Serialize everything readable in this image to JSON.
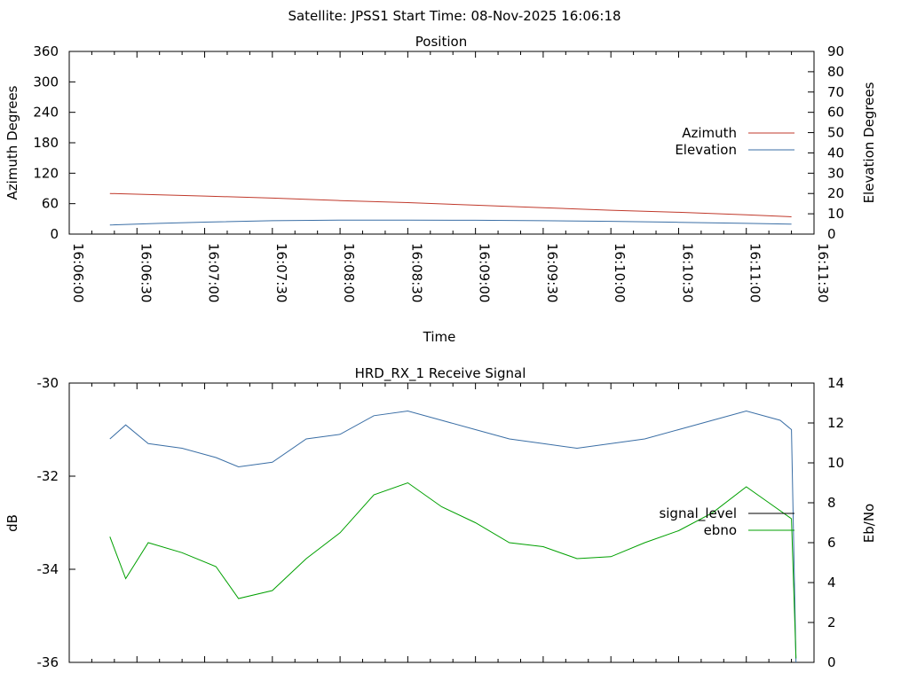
{
  "header": "Satellite: JPSS1    Start Time: 08-Nov-2025 16:06:18",
  "chart_data": [
    {
      "type": "line",
      "title": "Position",
      "xlabel": "Time",
      "ylabel": "Azimuth Degrees",
      "y2label": "Elevation Degrees",
      "xlim": [
        "16:06:00",
        "16:11:30"
      ],
      "ylim": [
        0,
        360
      ],
      "y2lim": [
        0,
        90
      ],
      "x_ticks": [
        "16:06:00",
        "16:06:30",
        "16:07:00",
        "16:07:30",
        "16:08:00",
        "16:08:30",
        "16:09:00",
        "16:09:30",
        "16:10:00",
        "16:10:30",
        "16:11:00",
        "16:11:30"
      ],
      "y_ticks": [
        "0",
        "60",
        "120",
        "180",
        "240",
        "300",
        "360"
      ],
      "y2_ticks": [
        "0",
        "10",
        "20",
        "30",
        "40",
        "50",
        "60",
        "70",
        "80",
        "90"
      ],
      "legend_position": "right",
      "series": [
        {
          "name": "Azimuth",
          "axis": "y",
          "color": "#c0392b",
          "x": [
            "16:06:18",
            "16:07:00",
            "16:07:30",
            "16:08:00",
            "16:08:30",
            "16:09:00",
            "16:09:30",
            "16:10:00",
            "16:10:30",
            "16:11:00",
            "16:11:20"
          ],
          "values": [
            80,
            75,
            71,
            66,
            62,
            57,
            52,
            47,
            43,
            38,
            34
          ]
        },
        {
          "name": "Elevation",
          "axis": "y2",
          "color": "#3a6ea5",
          "x": [
            "16:06:18",
            "16:06:40",
            "16:07:00",
            "16:07:30",
            "16:08:00",
            "16:08:30",
            "16:09:00",
            "16:09:30",
            "16:10:00",
            "16:10:30",
            "16:11:00",
            "16:11:20"
          ],
          "values": [
            4.5,
            5.3,
            5.9,
            6.6,
            6.9,
            6.9,
            6.8,
            6.6,
            6.3,
            5.8,
            5.3,
            4.9
          ]
        }
      ]
    },
    {
      "type": "line",
      "title": "HRD_RX_1 Receive Signal",
      "xlabel": "",
      "ylabel": "dB",
      "y2label": "Eb/No",
      "xlim": [
        "16:06:00",
        "16:11:30"
      ],
      "ylim": [
        -36,
        -30
      ],
      "y2lim": [
        0,
        14
      ],
      "y_ticks": [
        "-30",
        "-32",
        "-34",
        "-36"
      ],
      "y2_ticks": [
        "0",
        "2",
        "4",
        "6",
        "8",
        "10",
        "12",
        "14"
      ],
      "legend_position": "right",
      "series": [
        {
          "name": "signal_level",
          "axis": "y",
          "color": "#3a6ea5",
          "x": [
            "16:06:18",
            "16:06:25",
            "16:06:35",
            "16:06:50",
            "16:07:05",
            "16:07:15",
            "16:07:30",
            "16:07:45",
            "16:08:00",
            "16:08:15",
            "16:08:30",
            "16:08:45",
            "16:09:00",
            "16:09:15",
            "16:09:30",
            "16:09:45",
            "16:10:00",
            "16:10:15",
            "16:10:30",
            "16:10:45",
            "16:11:00",
            "16:11:15",
            "16:11:20",
            "16:11:22"
          ],
          "values": [
            -31.2,
            -30.9,
            -31.3,
            -31.4,
            -31.6,
            -31.8,
            -31.7,
            -31.2,
            -31.1,
            -30.7,
            -30.6,
            -30.8,
            -31.0,
            -31.2,
            -31.3,
            -31.4,
            -31.3,
            -31.2,
            -31.0,
            -30.8,
            -30.6,
            -30.8,
            -31.0,
            -36.0
          ]
        },
        {
          "name": "ebno",
          "axis": "y2",
          "color": "#00a000",
          "x": [
            "16:06:18",
            "16:06:25",
            "16:06:35",
            "16:06:50",
            "16:07:05",
            "16:07:15",
            "16:07:30",
            "16:07:45",
            "16:08:00",
            "16:08:15",
            "16:08:30",
            "16:08:45",
            "16:09:00",
            "16:09:15",
            "16:09:30",
            "16:09:45",
            "16:10:00",
            "16:10:15",
            "16:10:30",
            "16:10:45",
            "16:11:00",
            "16:11:10",
            "16:11:20",
            "16:11:22"
          ],
          "values": [
            6.3,
            4.2,
            6.0,
            5.5,
            4.8,
            3.2,
            3.6,
            5.2,
            6.5,
            8.4,
            9.0,
            7.8,
            7.0,
            6.0,
            5.8,
            5.2,
            5.3,
            6.0,
            6.6,
            7.5,
            8.8,
            8.0,
            7.2,
            0.2
          ]
        }
      ]
    }
  ]
}
